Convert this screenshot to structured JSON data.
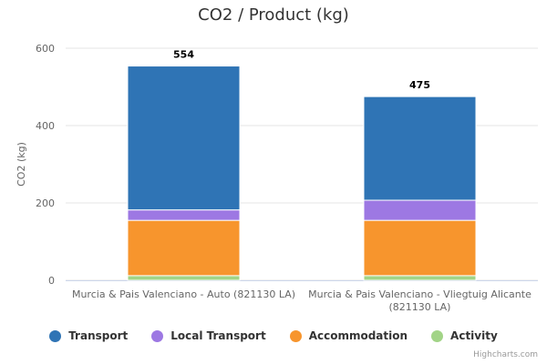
{
  "chart_data": {
    "type": "bar",
    "title": "CO2 / Product (kg)",
    "xlabel": "",
    "ylabel": "CO2 (kg)",
    "ylim": [
      0,
      600
    ],
    "yticks": [
      0,
      200,
      400,
      600
    ],
    "stacked": true,
    "grid": true,
    "legend_position": "bottom",
    "categories": [
      [
        "Murcia & Pais Valenciano - Auto (821130 LA)"
      ],
      [
        "Murcia & Pais Valenciano - Vliegtuig Alicante",
        "(821130 LA)"
      ]
    ],
    "series": [
      {
        "name": "Activity",
        "color": "#a2d487",
        "values": [
          12,
          12
        ]
      },
      {
        "name": "Accommodation",
        "color": "#f7952d",
        "values": [
          143,
          143
        ]
      },
      {
        "name": "Local Transport",
        "color": "#9d78e3",
        "values": [
          27,
          52
        ]
      },
      {
        "name": "Transport",
        "color": "#2f74b5",
        "values": [
          372,
          268
        ]
      }
    ],
    "totals": [
      "554",
      "475"
    ],
    "legend_order": [
      "Transport",
      "Local Transport",
      "Accommodation",
      "Activity"
    ]
  },
  "credits": "Highcharts.com"
}
